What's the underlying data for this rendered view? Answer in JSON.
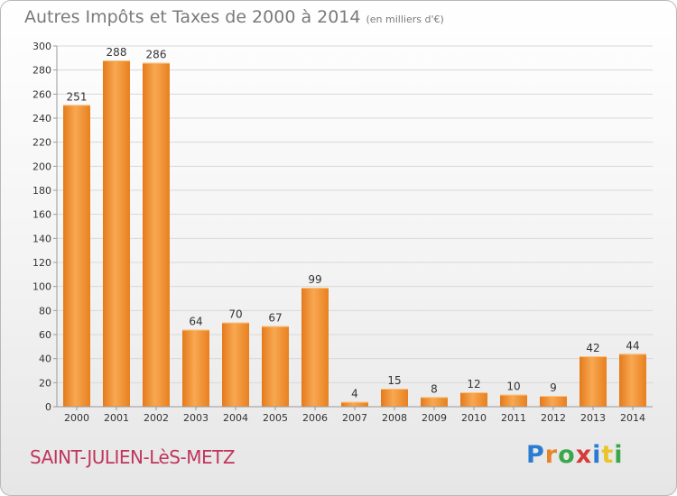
{
  "header": {
    "title": "Autres Impôts et Taxes de 2000 à 2014",
    "subtitle": "(en milliers d'€)"
  },
  "footer": {
    "town": "SAINT-JULIEN-LèS-METZ",
    "logo_text": "Proxiti"
  },
  "colors": {
    "bar": "#f0912e",
    "bar_light": "#f8b060",
    "grid": "#d8d8d8",
    "axis": "#9a9a9a",
    "town": "#c0365c"
  },
  "chart_data": {
    "type": "bar",
    "title": "Autres Impôts et Taxes de 2000 à 2014",
    "categories": [
      "2000",
      "2001",
      "2002",
      "2003",
      "2004",
      "2005",
      "2006",
      "2007",
      "2008",
      "2009",
      "2010",
      "2011",
      "2012",
      "2013",
      "2014"
    ],
    "values": [
      251,
      288,
      286,
      64,
      70,
      67,
      99,
      4,
      15,
      8,
      12,
      10,
      9,
      42,
      44
    ],
    "ylim": [
      0,
      300
    ],
    "yticks": [
      0,
      20,
      40,
      60,
      80,
      100,
      120,
      140,
      160,
      180,
      200,
      220,
      240,
      260,
      280,
      300
    ],
    "grid": true,
    "data_labels": true
  }
}
